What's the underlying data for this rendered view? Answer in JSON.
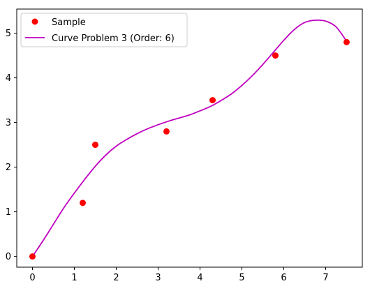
{
  "chart_data": {
    "type": "scatter",
    "title": "",
    "xlabel": "",
    "ylabel": "",
    "xlim": [
      -0.375,
      7.875
    ],
    "ylim": [
      -0.24,
      5.54
    ],
    "xticks": [
      0,
      1,
      2,
      3,
      4,
      5,
      6,
      7
    ],
    "yticks": [
      0,
      1,
      2,
      3,
      4,
      5
    ],
    "grid": false,
    "legend_position": "top-left",
    "series": [
      {
        "name": "Sample",
        "kind": "scatter",
        "color": "#ff0000",
        "x": [
          0,
          1.2,
          1.5,
          3.2,
          4.3,
          5.8,
          7.5
        ],
        "y": [
          0,
          1.2,
          2.5,
          2.8,
          3.5,
          4.5,
          4.8
        ]
      },
      {
        "name": "Curve Problem 3 (Order: 6)",
        "kind": "line",
        "color": "#bf00bf",
        "x": [
          0,
          0.25,
          0.5,
          0.75,
          1.0,
          1.25,
          1.5,
          1.75,
          2.0,
          2.25,
          2.5,
          2.75,
          3.0,
          3.25,
          3.5,
          3.75,
          4.0,
          4.25,
          4.5,
          4.75,
          5.0,
          5.25,
          5.5,
          5.75,
          6.0,
          6.25,
          6.5,
          6.75,
          7.0,
          7.25,
          7.5
        ],
        "y": [
          0.0,
          0.35,
          0.72,
          1.09,
          1.42,
          1.73,
          2.02,
          2.27,
          2.47,
          2.62,
          2.75,
          2.86,
          2.95,
          3.03,
          3.1,
          3.17,
          3.26,
          3.36,
          3.49,
          3.64,
          3.83,
          4.05,
          4.3,
          4.57,
          4.84,
          5.08,
          5.24,
          5.29,
          5.27,
          5.14,
          4.82
        ]
      }
    ]
  }
}
